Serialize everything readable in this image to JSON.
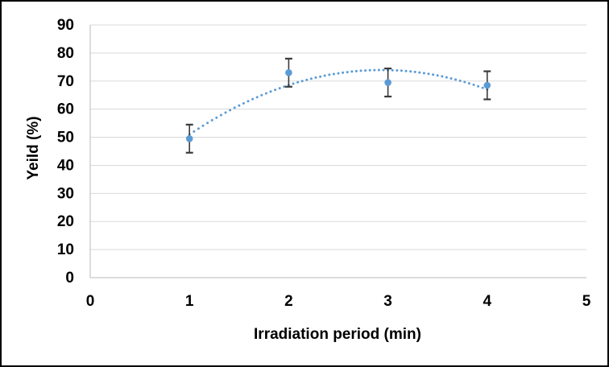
{
  "chart_data": {
    "type": "scatter",
    "title": "",
    "xlabel": "Irradiation period (min)",
    "ylabel": "Yeild (%)",
    "x": [
      1,
      2,
      3,
      4
    ],
    "values": [
      49.5,
      73,
      69.5,
      68.5
    ],
    "error_bars": [
      5,
      5,
      5,
      5
    ],
    "trendline": {
      "kind": "polynomial",
      "order": 2,
      "coefficients": [
        -6.125,
        35.975,
        21.125
      ],
      "x_domain": [
        1,
        4
      ],
      "style": "dotted"
    },
    "xlim": [
      0,
      5
    ],
    "ylim": [
      0,
      90
    ],
    "x_ticks": [
      0,
      1,
      2,
      3,
      4,
      5
    ],
    "y_ticks": [
      0,
      10,
      20,
      30,
      40,
      50,
      60,
      70,
      80,
      90
    ],
    "grid": "horizontal-major",
    "legend": "none",
    "colors": {
      "marker": "#5B9BD5",
      "trendline": "#5B9BD5",
      "error_bar": "#3b3b3b",
      "gridline": "#D9D9D9",
      "axis_line": "#C6C6C6",
      "tick_label": "#000000",
      "figure_border": "#000000",
      "background": "#FFFFFF"
    }
  }
}
